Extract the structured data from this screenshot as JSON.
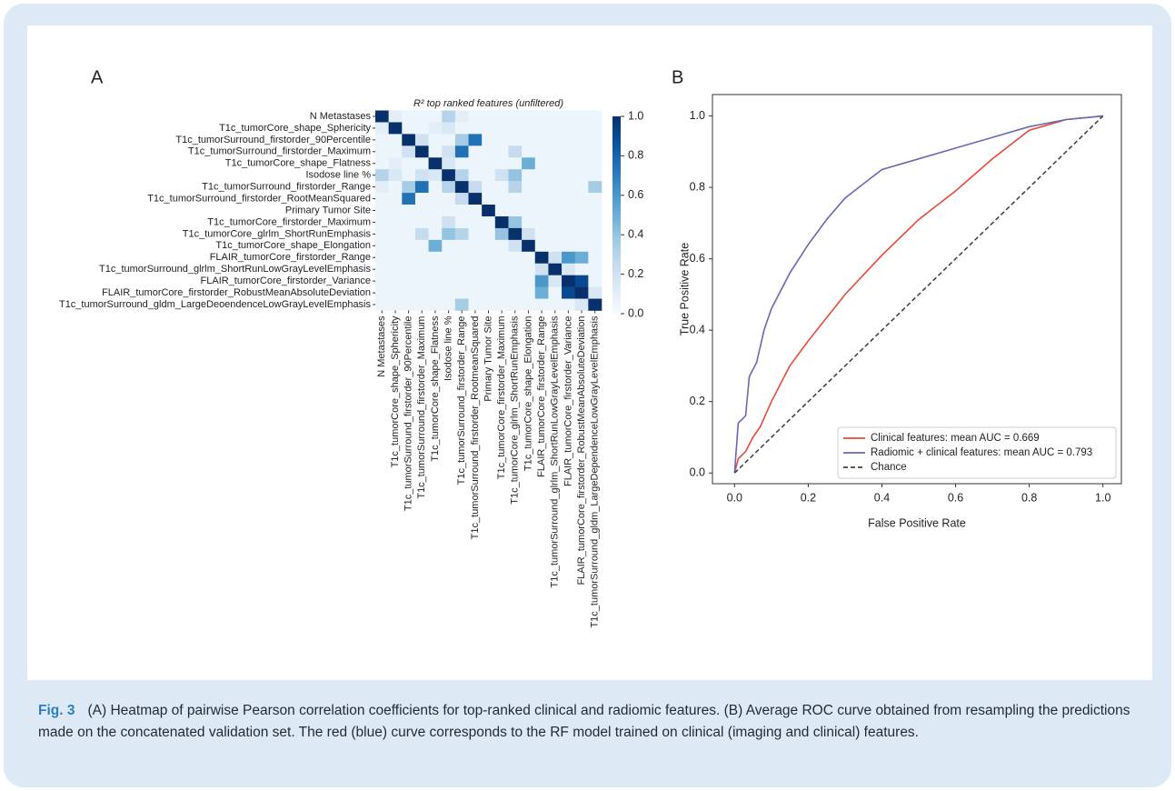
{
  "chart_data": [
    {
      "type": "heatmap",
      "panel_label": "A",
      "title": "R² top ranked features (unfiltered)",
      "row_labels": [
        "N Metastases",
        "T1c_tumorCore_shape_Sphericity",
        "T1c_tumorSurround_firstorder_90Percentile",
        "T1c_tumorSurround_firstorder_Maximum",
        "T1c_tumorCore_shape_Flatness",
        "Isodose line %",
        "T1c_tumorSurround_firstorder_Range",
        "T1c_tumorSurround_firstorder_RootMeanSquared",
        "Primary Tumor Site",
        "T1c_tumorCore_firstorder_Maximum",
        "T1c_tumorCore_glrlm_ShortRunEmphasis",
        "T1c_tumorCore_shape_Elongation",
        "FLAIR_tumorCore_firstorder_Range",
        "T1c_tumorSurround_glrlm_ShortRunLowGrayLevelEmphasis",
        "FLAIR_tumorCore_firstorder_Variance",
        "FLAIR_tumorCore_firstorder_RobustMeanAbsoluteDeviation",
        "T1c_tumorSurround_gldm_LargeDeoendenceLowGrayLevelEmphasis"
      ],
      "column_labels": [
        "N Metastases",
        "T1c_tumorCore_shape_Sphericity",
        "T1c_tumorSurround_firstorder_90Percentile",
        "T1c_tumorSurround_firstorder_Maximum",
        "T1c_tumorCore_shape_Flatness",
        "Isodose line %",
        "T1c_tumorSurround_firstorder_Range",
        "T1c_tumorSurround_firstorder_RootmeanSquared",
        "Primary Tumor Site",
        "T1c_tumorCore_firstorder_Maximum",
        "T1c_tumorCore_glrlm_ShortRunEmphasis",
        "T1c_tumorCore_shape_Elongation",
        "FLAIR_tumorCore_firstorder_Range",
        "T1c_tumorSurround_glrlm_ShortRunLowGrayLevelEmphasis",
        "FLAIR_tumorCore_firstorder_Variance",
        "FLAIR_tumorCore_firstorder_RobustMeanAbsoluteDeviation",
        "T1c_tumorSurround_gldm_LargeDependenceLowGrayLevelEmphasis"
      ],
      "values": [
        [
          1,
          0.1,
          0.05,
          0.05,
          0.05,
          0.3,
          0.1,
          0.05,
          0.05,
          0.05,
          0.05,
          0.05,
          0.05,
          0.05,
          0.05,
          0.05,
          0.05
        ],
        [
          0.1,
          1,
          0.05,
          0.05,
          0.1,
          0.15,
          0.05,
          0.05,
          0.05,
          0.05,
          0.05,
          0.05,
          0.05,
          0.05,
          0.05,
          0.05,
          0.05
        ],
        [
          0.05,
          0.05,
          1,
          0.2,
          0.05,
          0.05,
          0.35,
          0.75,
          0.05,
          0.05,
          0.05,
          0.05,
          0.05,
          0.05,
          0.05,
          0.05,
          0.05
        ],
        [
          0.05,
          0.05,
          0.2,
          1,
          0.05,
          0.2,
          0.75,
          0.05,
          0.05,
          0.05,
          0.25,
          0.05,
          0.05,
          0.05,
          0.05,
          0.05,
          0.05
        ],
        [
          0.05,
          0.1,
          0.05,
          0.05,
          1,
          0.15,
          0.05,
          0.05,
          0.05,
          0.05,
          0.05,
          0.5,
          0.05,
          0.05,
          0.05,
          0.05,
          0.05
        ],
        [
          0.3,
          0.15,
          0.05,
          0.2,
          0.15,
          1,
          0.3,
          0.05,
          0.05,
          0.2,
          0.4,
          0.05,
          0.05,
          0.05,
          0.05,
          0.05,
          0.05
        ],
        [
          0.1,
          0.05,
          0.35,
          0.75,
          0.05,
          0.3,
          1,
          0.25,
          0.05,
          0.05,
          0.3,
          0.05,
          0.05,
          0.05,
          0.05,
          0.05,
          0.35
        ],
        [
          0.05,
          0.05,
          0.75,
          0.05,
          0.05,
          0.05,
          0.25,
          1,
          0.05,
          0.05,
          0.05,
          0.05,
          0.05,
          0.05,
          0.05,
          0.05,
          0.05
        ],
        [
          0.05,
          0.05,
          0.05,
          0.05,
          0.05,
          0.05,
          0.05,
          0.05,
          1,
          0.05,
          0.05,
          0.05,
          0.05,
          0.05,
          0.05,
          0.05,
          0.05
        ],
        [
          0.05,
          0.05,
          0.05,
          0.05,
          0.05,
          0.2,
          0.05,
          0.05,
          0.05,
          1,
          0.4,
          0.05,
          0.05,
          0.05,
          0.05,
          0.05,
          0.05
        ],
        [
          0.05,
          0.05,
          0.05,
          0.25,
          0.05,
          0.4,
          0.3,
          0.05,
          0.05,
          0.4,
          1,
          0.2,
          0.05,
          0.05,
          0.05,
          0.05,
          0.05
        ],
        [
          0.05,
          0.05,
          0.05,
          0.05,
          0.5,
          0.05,
          0.05,
          0.05,
          0.05,
          0.05,
          0.2,
          1,
          0.05,
          0.05,
          0.05,
          0.05,
          0.05
        ],
        [
          0.05,
          0.05,
          0.05,
          0.05,
          0.05,
          0.05,
          0.05,
          0.05,
          0.05,
          0.05,
          0.05,
          0.05,
          1,
          0.2,
          0.6,
          0.5,
          0.05
        ],
        [
          0.05,
          0.05,
          0.05,
          0.05,
          0.05,
          0.05,
          0.05,
          0.05,
          0.05,
          0.05,
          0.05,
          0.05,
          0.2,
          1,
          0.15,
          0.05,
          0.05
        ],
        [
          0.05,
          0.05,
          0.05,
          0.05,
          0.05,
          0.05,
          0.05,
          0.05,
          0.05,
          0.05,
          0.05,
          0.05,
          0.6,
          0.15,
          1,
          0.9,
          0.05
        ],
        [
          0.05,
          0.05,
          0.05,
          0.05,
          0.05,
          0.05,
          0.05,
          0.05,
          0.05,
          0.05,
          0.05,
          0.05,
          0.5,
          0.05,
          0.9,
          1,
          0.15
        ],
        [
          0.05,
          0.05,
          0.05,
          0.05,
          0.05,
          0.05,
          0.35,
          0.05,
          0.05,
          0.05,
          0.05,
          0.05,
          0.05,
          0.05,
          0.05,
          0.15,
          1
        ]
      ],
      "colormap": "Blues",
      "zlim": [
        0,
        1
      ],
      "zticks": [
        {
          "value": 0,
          "label": "0.0"
        },
        0.2,
        0.4,
        0.6,
        0.8,
        {
          "value": 1,
          "label": "1.0"
        }
      ]
    },
    {
      "type": "line",
      "panel_label": "B",
      "x_label": "False Positive Rate",
      "y_label": "True Positive Rate",
      "xlim": [
        -0.06,
        1.05
      ],
      "ylim": [
        -0.03,
        1.06
      ],
      "xticks": [
        {
          "value": 0,
          "label": "0.0"
        },
        0.2,
        0.4,
        0.6,
        0.8,
        {
          "value": 1,
          "label": "1.0"
        }
      ],
      "yticks": [
        {
          "value": 0,
          "label": "0.0"
        },
        0.2,
        0.4,
        0.6,
        0.8,
        {
          "value": 1,
          "label": "1.0"
        }
      ],
      "legend": "lower right",
      "series": [
        {
          "name": "Clinical features: mean AUC = 0.669",
          "color": "#e8473a",
          "dash": false,
          "x": [
            0,
            0.01,
            0.03,
            0.05,
            0.07,
            0.1,
            0.15,
            0.2,
            0.3,
            0.4,
            0.5,
            0.6,
            0.7,
            0.8,
            0.9,
            1
          ],
          "values": [
            0,
            0.04,
            0.06,
            0.1,
            0.13,
            0.2,
            0.3,
            0.37,
            0.5,
            0.61,
            0.71,
            0.79,
            0.88,
            0.96,
            0.99,
            1
          ]
        },
        {
          "name": "Radiomic + clinical features: mean AUC = 0.793",
          "color": "#6a68b4",
          "dash": false,
          "x": [
            0,
            0.01,
            0.03,
            0.04,
            0.06,
            0.08,
            0.1,
            0.15,
            0.2,
            0.25,
            0.3,
            0.35,
            0.4,
            0.5,
            0.6,
            0.7,
            0.8,
            0.9,
            1
          ],
          "values": [
            0,
            0.14,
            0.16,
            0.27,
            0.31,
            0.4,
            0.46,
            0.56,
            0.64,
            0.71,
            0.77,
            0.81,
            0.85,
            0.88,
            0.91,
            0.94,
            0.97,
            0.99,
            1
          ]
        },
        {
          "name": "Chance",
          "color": "#444444",
          "dash": true,
          "x": [
            0,
            1
          ],
          "values": [
            0,
            1
          ]
        }
      ]
    }
  ],
  "caption": {
    "label": "Fig. 3",
    "text": "(A) Heatmap of pairwise Pearson correlation coefficients for top-ranked clinical and radiomic features. (B) Average ROC curve obtained from resampling the predictions made on the concatenated validation set. The red (blue) curve corresponds to the RF model trained on clinical (imaging and clinical) features."
  }
}
